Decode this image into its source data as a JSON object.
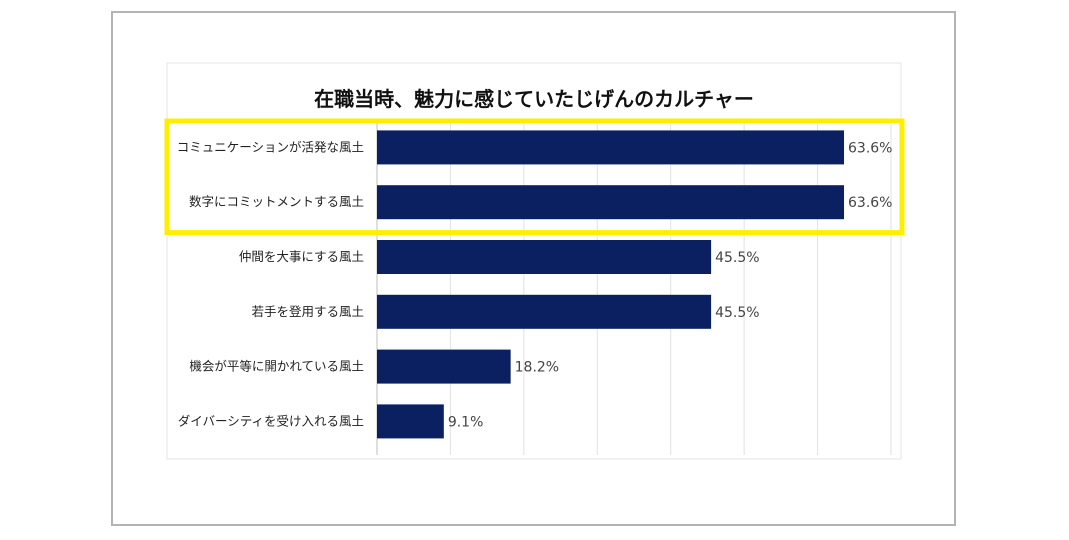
{
  "chart_data": {
    "type": "bar",
    "orientation": "horizontal",
    "title": "在職当時、魅力に感じていたじげんのカルチャー",
    "categories": [
      "コミュニケーションが活発な風土",
      "数字にコミットメントする風土",
      "仲間を大事にする風土",
      "若手を登用する風土",
      "機会が平等に開かれている風土",
      "ダイバーシティを受け入れる風土"
    ],
    "values": [
      63.6,
      63.6,
      45.5,
      45.5,
      18.2,
      9.1
    ],
    "value_labels": [
      "63.6%",
      "63.6%",
      "45.5%",
      "45.5%",
      "18.2%",
      "9.1%"
    ],
    "xlim": [
      0,
      70
    ],
    "grid": true,
    "legend": "none",
    "highlight": {
      "categories": [
        0,
        1
      ],
      "color": "#ffee00"
    },
    "bar_color": "#0a2060"
  }
}
